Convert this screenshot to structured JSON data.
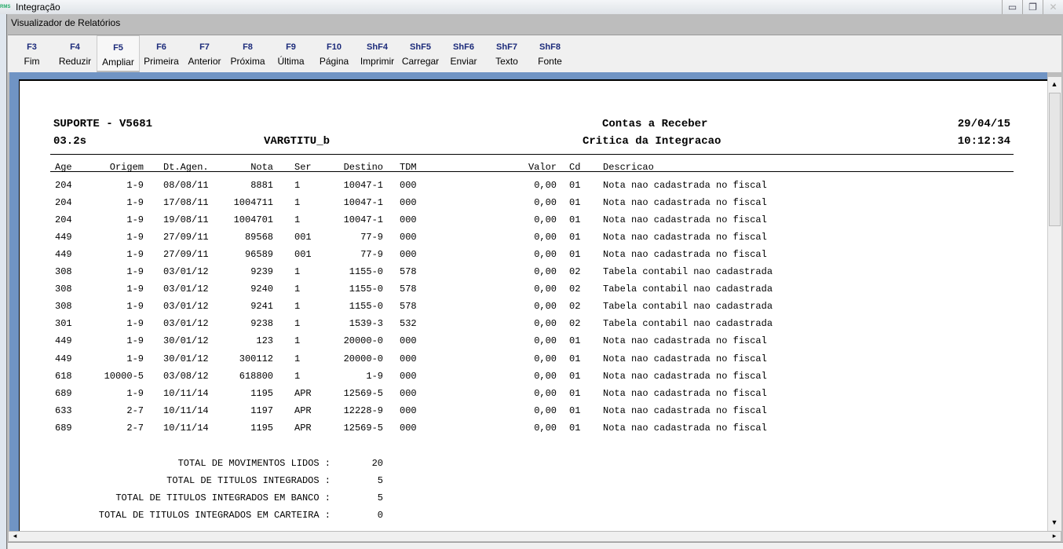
{
  "window": {
    "title": "Integração",
    "app_icon": "rms-logo",
    "inner_title": "Visualizador de Relatórios"
  },
  "toolbar": [
    {
      "key": "F3",
      "label": "Fim"
    },
    {
      "key": "F4",
      "label": "Reduzir"
    },
    {
      "key": "F5",
      "label": "Ampliar",
      "active": true
    },
    {
      "key": "F6",
      "label": "Primeira"
    },
    {
      "key": "F7",
      "label": "Anterior"
    },
    {
      "key": "F8",
      "label": "Próxima"
    },
    {
      "key": "F9",
      "label": "Última"
    },
    {
      "key": "F10",
      "label": "Página"
    },
    {
      "key": "ShF4",
      "label": "Imprimir"
    },
    {
      "key": "ShF5",
      "label": "Carregar"
    },
    {
      "key": "ShF6",
      "label": "Enviar"
    },
    {
      "key": "ShF7",
      "label": "Texto"
    },
    {
      "key": "ShF8",
      "label": "Fonte"
    }
  ],
  "report": {
    "company": "SUPORTE - V5681",
    "version": "03.2s",
    "program": "VARGTITU_b",
    "module": "Contas a Receber",
    "title": "Critica da Integracao",
    "date": "29/04/15",
    "time": "10:12:34",
    "columns": [
      "Age",
      "Origem",
      "Dt.Agen.",
      "Nota",
      "Ser",
      "Destino",
      "TDM",
      "Valor",
      "Cd",
      "Descricao"
    ],
    "rows": [
      [
        "204",
        "1-9",
        "08/08/11",
        "8881",
        "1",
        "10047-1",
        "000",
        "0,00",
        "01",
        "Nota nao cadastrada no fiscal"
      ],
      [
        "204",
        "1-9",
        "17/08/11",
        "1004711",
        "1",
        "10047-1",
        "000",
        "0,00",
        "01",
        "Nota nao cadastrada no fiscal"
      ],
      [
        "204",
        "1-9",
        "19/08/11",
        "1004701",
        "1",
        "10047-1",
        "000",
        "0,00",
        "01",
        "Nota nao cadastrada no fiscal"
      ],
      [
        "449",
        "1-9",
        "27/09/11",
        "89568",
        "001",
        "77-9",
        "000",
        "0,00",
        "01",
        "Nota nao cadastrada no fiscal"
      ],
      [
        "449",
        "1-9",
        "27/09/11",
        "96589",
        "001",
        "77-9",
        "000",
        "0,00",
        "01",
        "Nota nao cadastrada no fiscal"
      ],
      [
        "308",
        "1-9",
        "03/01/12",
        "9239",
        "1",
        "1155-0",
        "578",
        "0,00",
        "02",
        "Tabela contabil nao cadastrada"
      ],
      [
        "308",
        "1-9",
        "03/01/12",
        "9240",
        "1",
        "1155-0",
        "578",
        "0,00",
        "02",
        "Tabela contabil nao cadastrada"
      ],
      [
        "308",
        "1-9",
        "03/01/12",
        "9241",
        "1",
        "1155-0",
        "578",
        "0,00",
        "02",
        "Tabela contabil nao cadastrada"
      ],
      [
        "301",
        "1-9",
        "03/01/12",
        "9238",
        "1",
        "1539-3",
        "532",
        "0,00",
        "02",
        "Tabela contabil nao cadastrada"
      ],
      [
        "449",
        "1-9",
        "30/01/12",
        "123",
        "1",
        "20000-0",
        "000",
        "0,00",
        "01",
        "Nota nao cadastrada no fiscal"
      ],
      [
        "449",
        "1-9",
        "30/01/12",
        "300112",
        "1",
        "20000-0",
        "000",
        "0,00",
        "01",
        "Nota nao cadastrada no fiscal"
      ],
      [
        "618",
        "10000-5",
        "03/08/12",
        "618800",
        "1",
        "1-9",
        "000",
        "0,00",
        "01",
        "Nota nao cadastrada no fiscal"
      ],
      [
        "689",
        "1-9",
        "10/11/14",
        "1195",
        "APR",
        "12569-5",
        "000",
        "0,00",
        "01",
        "Nota nao cadastrada no fiscal"
      ],
      [
        "633",
        "2-7",
        "10/11/14",
        "1197",
        "APR",
        "12228-9",
        "000",
        "0,00",
        "01",
        "Nota nao cadastrada no fiscal"
      ],
      [
        "689",
        "2-7",
        "10/11/14",
        "1195",
        "APR",
        "12569-5",
        "000",
        "0,00",
        "01",
        "Nota nao cadastrada no fiscal"
      ]
    ],
    "totals": [
      {
        "label": "TOTAL DE MOVIMENTOS LIDOS :",
        "value": "20"
      },
      {
        "label": "TOTAL DE TITULOS INTEGRADOS :",
        "value": "5"
      },
      {
        "label": "TOTAL DE TITULOS INTEGRADOS EM BANCO :",
        "value": "5"
      },
      {
        "label": "TOTAL DE TITULOS INTEGRADOS EM CARTEIRA :",
        "value": "0"
      }
    ]
  }
}
